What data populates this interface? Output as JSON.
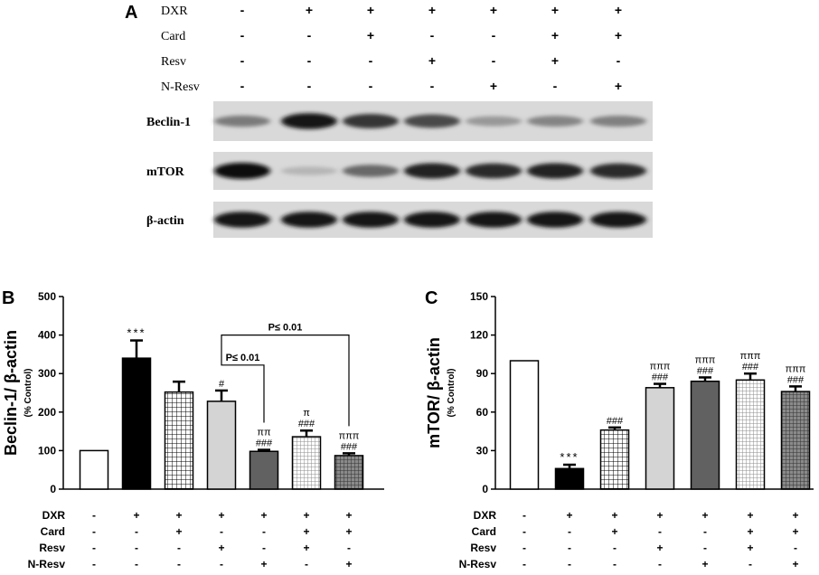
{
  "panel_a": {
    "label": "A",
    "conditions": [
      {
        "name": "DXR",
        "values": [
          "-",
          "+",
          "+",
          "+",
          "+",
          "+",
          "+"
        ]
      },
      {
        "name": "Card",
        "values": [
          "-",
          "-",
          "+",
          "-",
          "-",
          "+",
          "+"
        ]
      },
      {
        "name": "Resv",
        "values": [
          "-",
          "-",
          "-",
          "+",
          "-",
          "+",
          "-"
        ]
      },
      {
        "name": "N-Resv",
        "values": [
          "-",
          "-",
          "-",
          "-",
          "+",
          "-",
          "+"
        ]
      }
    ],
    "blots": [
      {
        "name": "Beclin-1",
        "intensity": [
          0.45,
          0.95,
          0.8,
          0.7,
          0.3,
          0.4,
          0.42
        ]
      },
      {
        "name": "mTOR",
        "intensity": [
          1.0,
          0.15,
          0.55,
          0.9,
          0.85,
          0.9,
          0.85
        ]
      },
      {
        "name": "β-actin",
        "intensity": [
          0.95,
          0.95,
          0.95,
          0.95,
          0.95,
          0.95,
          0.95
        ]
      }
    ]
  },
  "chart_data": [
    {
      "panel": "B",
      "type": "bar",
      "ylabel": "Beclin-1/ β-actin",
      "ysublabel": "(% Control)",
      "ylim": [
        0,
        500
      ],
      "yticks": [
        0,
        100,
        200,
        300,
        400,
        500
      ],
      "values": [
        100,
        340,
        252,
        228,
        98,
        136,
        87
      ],
      "errors": [
        0,
        46,
        27,
        28,
        4,
        16,
        6
      ],
      "fills": [
        "white",
        "black",
        "grid",
        "light",
        "dark",
        "dotgrid",
        "darkgrid"
      ],
      "annotations": [
        [
          "",
          ""
        ],
        [
          "",
          "***"
        ],
        [
          "",
          ""
        ],
        [
          "",
          "#"
        ],
        [
          "ππ",
          "###"
        ],
        [
          "π\n###",
          ""
        ],
        [
          "πππ",
          "###"
        ]
      ],
      "annotation_lines": [
        [],
        [
          "***"
        ],
        [],
        [
          "#"
        ],
        [
          "ππ",
          "###"
        ],
        [
          "π",
          "###"
        ],
        [
          "πππ",
          "###"
        ]
      ],
      "brackets": [
        {
          "label": "P≤ 0.01",
          "from": 3,
          "to": 4,
          "level": 322
        },
        {
          "label": "P≤ 0.01",
          "from": 3,
          "to": 6,
          "level": 400
        }
      ],
      "conditions": [
        {
          "name": "DXR",
          "values": [
            "-",
            "+",
            "+",
            "+",
            "+",
            "+",
            "+"
          ]
        },
        {
          "name": "Card",
          "values": [
            "-",
            "-",
            "+",
            "-",
            "-",
            "+",
            "+"
          ]
        },
        {
          "name": "Resv",
          "values": [
            "-",
            "-",
            "-",
            "+",
            "-",
            "+",
            "-"
          ]
        },
        {
          "name": "N-Resv",
          "values": [
            "-",
            "-",
            "-",
            "-",
            "+",
            "-",
            "+"
          ]
        }
      ]
    },
    {
      "panel": "C",
      "type": "bar",
      "ylabel": "mTOR/ β-actin",
      "ysublabel": "(% Control)",
      "ylim": [
        0,
        150
      ],
      "yticks": [
        0,
        30,
        60,
        90,
        120,
        150
      ],
      "values": [
        100,
        16,
        46,
        79,
        84,
        85,
        76
      ],
      "errors": [
        0,
        3,
        2,
        3,
        3,
        5,
        4
      ],
      "fills": [
        "white",
        "black",
        "grid",
        "light",
        "dark",
        "dotgrid",
        "darkgrid"
      ],
      "annotation_lines": [
        [],
        [
          "***"
        ],
        [
          "###"
        ],
        [
          "πππ",
          "###"
        ],
        [
          "πππ",
          "###"
        ],
        [
          "πππ",
          "###"
        ],
        [
          "πππ",
          "###"
        ]
      ],
      "brackets": [],
      "conditions": [
        {
          "name": "DXR",
          "values": [
            "-",
            "+",
            "+",
            "+",
            "+",
            "+",
            "+"
          ]
        },
        {
          "name": "Card",
          "values": [
            "-",
            "-",
            "+",
            "-",
            "-",
            "+",
            "+"
          ]
        },
        {
          "name": "Resv",
          "values": [
            "-",
            "-",
            "-",
            "+",
            "-",
            "+",
            "-"
          ]
        },
        {
          "name": "N-Resv",
          "values": [
            "-",
            "-",
            "-",
            "-",
            "+",
            "-",
            "+"
          ]
        }
      ]
    }
  ]
}
